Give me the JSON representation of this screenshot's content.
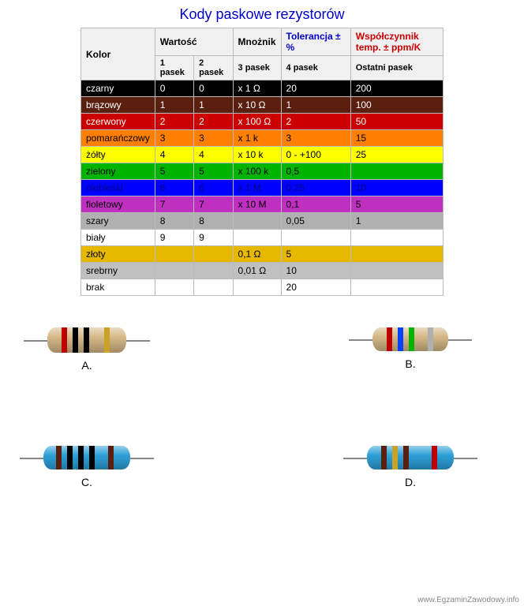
{
  "title": "Kody  paskowe rezystorów",
  "table": {
    "header_row1": [
      "Kolor",
      "Wartość",
      "Mnożnik",
      "Tolerancja ± %",
      "Współczynnik temp. ± ppm/K"
    ],
    "header_row2": [
      "1 pasek",
      "2 pasek",
      "3 pasek",
      "4 pasek",
      "Ostatni pasek"
    ],
    "rows": [
      {
        "name": "czarny",
        "bg": "#000000",
        "fg": "#ffffff",
        "v1": "0",
        "v2": "0",
        "mul": "x 1 Ω",
        "tol": "20",
        "tcr": "200"
      },
      {
        "name": "brązowy",
        "bg": "#5b1f0f",
        "fg": "#ffffff",
        "v1": "1",
        "v2": "1",
        "mul": "x 10 Ω",
        "tol": "1",
        "tcr": "100"
      },
      {
        "name": "czerwony",
        "bg": "#cc0000",
        "fg": "#ffffff",
        "v1": "2",
        "v2": "2",
        "mul": "x 100 Ω",
        "tol": "2",
        "tcr": "50"
      },
      {
        "name": "pomarańczowy",
        "bg": "#ff7f00",
        "fg": "#000000",
        "v1": "3",
        "v2": "3",
        "mul": "x 1 k",
        "tol": "3",
        "tcr": "15"
      },
      {
        "name": "żółty",
        "bg": "#ffff00",
        "fg": "#000000",
        "v1": "4",
        "v2": "4",
        "mul": "x 10 k",
        "tol": "0 - +100",
        "tcr": "25"
      },
      {
        "name": "zielony",
        "bg": "#00b400",
        "fg": "#000000",
        "v1": "5",
        "v2": "5",
        "mul": "x 100 k",
        "tol": "0,5",
        "tcr": ""
      },
      {
        "name": "niebieski",
        "bg": "#0000ff",
        "fg": "#000080",
        "v1": "6",
        "v2": "6",
        "mul": "x 1 M",
        "tol": "0,25",
        "tcr": "10"
      },
      {
        "name": "fioletowy",
        "bg": "#c030c0",
        "fg": "#000000",
        "v1": "7",
        "v2": "7",
        "mul": "x 10 M",
        "tol": "0,1",
        "tcr": "5"
      },
      {
        "name": "szary",
        "bg": "#b0b0b0",
        "fg": "#000000",
        "v1": "8",
        "v2": "8",
        "mul": "",
        "tol": "0,05",
        "tcr": "1"
      },
      {
        "name": "biały",
        "bg": "#ffffff",
        "fg": "#000000",
        "v1": "9",
        "v2": "9",
        "mul": "",
        "tol": "",
        "tcr": ""
      },
      {
        "name": "złoty",
        "bg": "#e6b800",
        "fg": "#000000",
        "v1": "",
        "v2": "",
        "mul": "0,1 Ω",
        "tol": "5",
        "tcr": ""
      },
      {
        "name": "srebrny",
        "bg": "#c0c0c0",
        "fg": "#000000",
        "v1": "",
        "v2": "",
        "mul": "0,01 Ω",
        "tol": "10",
        "tcr": ""
      },
      {
        "name": "brak",
        "bg": "#ffffff",
        "fg": "#000000",
        "v1": "",
        "v2": "",
        "mul": "",
        "tol": "20",
        "tcr": ""
      }
    ],
    "col_widths": [
      "90px",
      "50px",
      "50px",
      "60px",
      "90px",
      "120px"
    ]
  },
  "resistors": {
    "A": {
      "label": "A.",
      "body_color": "#d4b886",
      "body_w": 100,
      "body_h": 32,
      "bands": [
        {
          "x": 18,
          "c": "#c00000"
        },
        {
          "x": 32,
          "c": "#000000"
        },
        {
          "x": 46,
          "c": "#000000"
        },
        {
          "x": 72,
          "c": "#c9a227"
        }
      ]
    },
    "B": {
      "label": "B.",
      "body_color": "#d4b886",
      "body_w": 96,
      "body_h": 30,
      "bands": [
        {
          "x": 18,
          "c": "#c00000"
        },
        {
          "x": 32,
          "c": "#0040ff"
        },
        {
          "x": 46,
          "c": "#00b400"
        },
        {
          "x": 70,
          "c": "#b0b0b0"
        }
      ]
    },
    "C": {
      "label": "C.",
      "body_color": "#2da0d8",
      "body_w": 110,
      "body_h": 30,
      "bands": [
        {
          "x": 16,
          "c": "#5b1f0f"
        },
        {
          "x": 30,
          "c": "#000000"
        },
        {
          "x": 44,
          "c": "#000000"
        },
        {
          "x": 58,
          "c": "#000000"
        },
        {
          "x": 82,
          "c": "#5b1f0f"
        }
      ]
    },
    "D": {
      "label": "D.",
      "body_color": "#2da0d8",
      "body_w": 110,
      "body_h": 30,
      "bands": [
        {
          "x": 18,
          "c": "#5b1f0f"
        },
        {
          "x": 32,
          "c": "#c9a227"
        },
        {
          "x": 46,
          "c": "#5b1f0f"
        },
        {
          "x": 82,
          "c": "#c00000"
        }
      ]
    }
  },
  "watermark": "www.EgzaminZawodowy.info"
}
